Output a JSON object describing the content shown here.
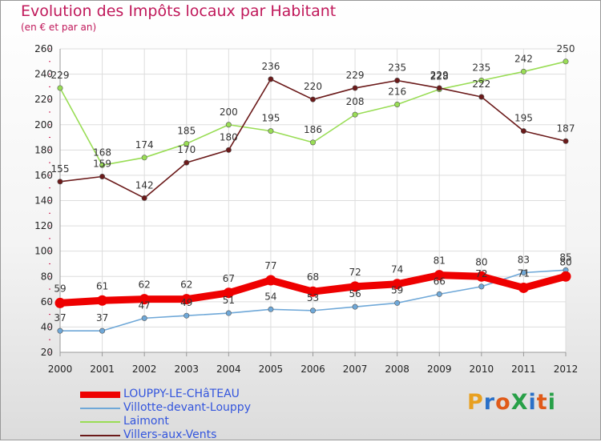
{
  "header": {
    "title": "Evolution des Impôts locaux par Habitant",
    "subtitle": "(en € et par an)"
  },
  "logo": {
    "text": "ProXiti",
    "letters": [
      "P",
      "r",
      "o",
      "X",
      "i",
      "t",
      "i"
    ]
  },
  "chart_data": {
    "type": "line",
    "title": "Evolution des Impôts locaux par Habitant",
    "subtitle": "(en € et par an)",
    "xlabel": "",
    "ylabel": "",
    "ylim": [
      20,
      260
    ],
    "yticks": [
      20,
      40,
      60,
      80,
      100,
      120,
      140,
      160,
      180,
      200,
      220,
      240,
      260
    ],
    "grid": true,
    "legend_position": "bottom-left",
    "x": [
      "2000",
      "2001",
      "2002",
      "2003",
      "2004",
      "2005",
      "2006",
      "2007",
      "2008",
      "2009",
      "2010",
      "2011",
      "2012"
    ],
    "series": [
      {
        "name": "LOUPPY-LE-CHâTEAU",
        "color": "#ee0000",
        "emphasis": true,
        "values": [
          59,
          61,
          62,
          62,
          67,
          77,
          68,
          72,
          74,
          81,
          80,
          71,
          80
        ]
      },
      {
        "name": "Villotte-devant-Louppy",
        "color": "#6fa8d8",
        "emphasis": false,
        "values": [
          37,
          37,
          47,
          49,
          51,
          54,
          53,
          56,
          59,
          66,
          72,
          83,
          85
        ]
      },
      {
        "name": "Laimont",
        "color": "#99dd55",
        "emphasis": false,
        "values": [
          229,
          168,
          174,
          185,
          200,
          195,
          186,
          208,
          216,
          228,
          235,
          242,
          250
        ]
      },
      {
        "name": "Villers-aux-Vents",
        "color": "#6b1a1a",
        "emphasis": false,
        "values": [
          155,
          159,
          142,
          170,
          180,
          236,
          220,
          229,
          235,
          229,
          222,
          195,
          187
        ]
      }
    ],
    "data_labels": [
      [
        "59",
        "61",
        "62",
        "62",
        "67",
        "77",
        "68",
        "72",
        "74",
        "81",
        "80",
        "71",
        "80"
      ],
      [
        "37",
        "37",
        "47",
        "49",
        "51",
        "54",
        "53",
        "56",
        "59",
        "66",
        "72",
        "83",
        "85"
      ],
      [
        "229",
        "168",
        "174",
        "185",
        "200",
        "195",
        "186",
        "208",
        "216",
        "228",
        "235",
        "242",
        "250"
      ],
      [
        "155",
        "159",
        "142",
        "170",
        "180",
        "236",
        "220",
        "229",
        "235",
        "229",
        "222",
        "195",
        "187"
      ]
    ]
  }
}
